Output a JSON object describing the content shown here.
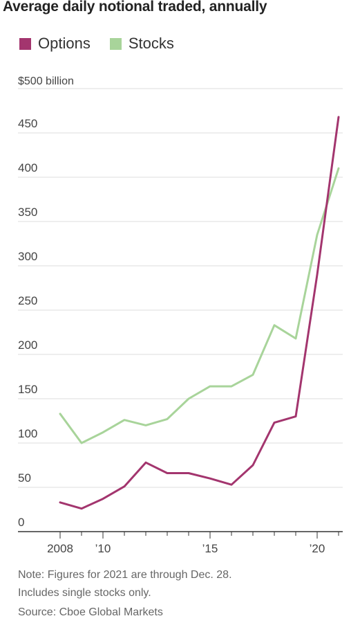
{
  "title": "Average daily notional traded, annually",
  "colors": {
    "options": "#a3356e",
    "stocks": "#a8d49a",
    "grid": "#dddddd",
    "axis": "#333333"
  },
  "chart_data": {
    "type": "line",
    "title": "Average daily notional traded, annually",
    "y_unit_label": "$500 billion",
    "xlim": [
      2008,
      2021
    ],
    "ylim": [
      0,
      500
    ],
    "y_ticks": [
      {
        "value": 500,
        "label": ""
      },
      {
        "value": 450,
        "label": "450"
      },
      {
        "value": 400,
        "label": "400"
      },
      {
        "value": 350,
        "label": "350"
      },
      {
        "value": 300,
        "label": "300"
      },
      {
        "value": 250,
        "label": "250"
      },
      {
        "value": 200,
        "label": "200"
      },
      {
        "value": 150,
        "label": "150"
      },
      {
        "value": 100,
        "label": "100"
      },
      {
        "value": 50,
        "label": "50"
      },
      {
        "value": 0,
        "label": "0"
      }
    ],
    "x_ticks": [
      {
        "value": 2008,
        "label": "2008"
      },
      {
        "value": 2010,
        "label": "’10"
      },
      {
        "value": 2015,
        "label": "’15"
      },
      {
        "value": 2020,
        "label": "’20"
      }
    ],
    "x": [
      2008,
      2009,
      2010,
      2011,
      2012,
      2013,
      2014,
      2015,
      2016,
      2017,
      2018,
      2019,
      2020,
      2021
    ],
    "series": [
      {
        "name": "Options",
        "color": "#a3356e",
        "values": [
          33,
          26,
          37,
          51,
          78,
          66,
          66,
          60,
          53,
          75,
          123,
          130,
          290,
          468
        ]
      },
      {
        "name": "Stocks",
        "color": "#a8d49a",
        "values": [
          133,
          100,
          112,
          126,
          120,
          127,
          150,
          164,
          164,
          177,
          233,
          218,
          335,
          410
        ]
      }
    ],
    "legend_position": "top-left",
    "grid": true
  },
  "notes": {
    "line1": "Note: Figures for 2021 are through Dec. 28.",
    "line2": "Includes single stocks only.",
    "source": "Source: Cboe Global Markets"
  }
}
